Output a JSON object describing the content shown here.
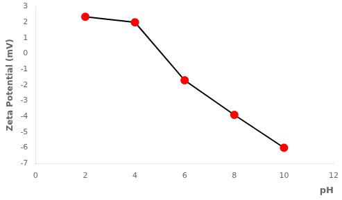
{
  "chart_data": {
    "type": "line",
    "x": [
      2,
      4,
      6,
      8,
      10
    ],
    "values": [
      2.35,
      2.0,
      -1.7,
      -3.9,
      -6.0
    ],
    "xlabel": "pH",
    "ylabel": "Zeta Potential (mV)",
    "xlim": [
      0,
      12
    ],
    "ylim": [
      -7,
      3
    ],
    "xticks": [
      0,
      2,
      4,
      6,
      8,
      10,
      12
    ],
    "yticks": [
      -7,
      -6,
      -5,
      -4,
      -3,
      -2,
      -1,
      0,
      1,
      2,
      3
    ],
    "color": "#000000",
    "colors": [
      "#ff0000",
      "#ff0000",
      "#ff0000",
      "#ff0000",
      "#ff0000"
    ],
    "marker": "circle",
    "grid": false
  }
}
